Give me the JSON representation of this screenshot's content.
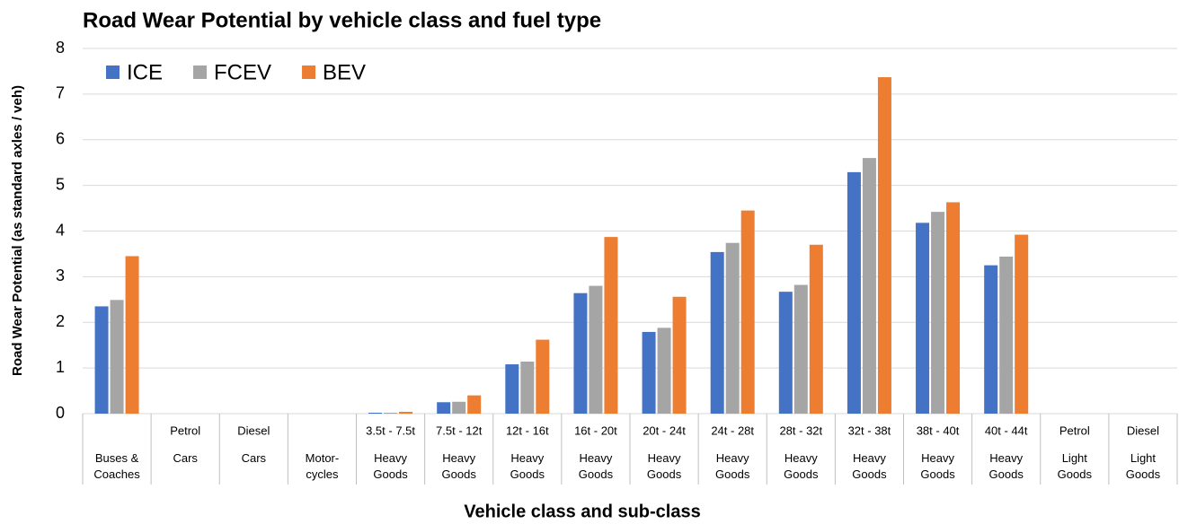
{
  "chart_data": {
    "type": "bar",
    "title": "Road Wear Potential by vehicle class and fuel type",
    "x_label": "Vehicle class and sub-class",
    "y_label": "Road Wear Potential (as standard axles / veh)",
    "categories": [
      null,
      "Petrol",
      "Diesel",
      null,
      "3.5t - 7.5t",
      "7.5t - 12t",
      "12t - 16t",
      "16t - 20t",
      "20t - 24t",
      "24t - 28t",
      "28t - 32t",
      "32t - 38t",
      "38t - 40t",
      "40t - 44t",
      "Petrol",
      "Diesel"
    ],
    "groups": [
      "Buses & Coaches",
      "Cars",
      "Cars",
      "Motor-cycles",
      "Heavy Goods",
      "Heavy Goods",
      "Heavy Goods",
      "Heavy Goods",
      "Heavy Goods",
      "Heavy Goods",
      "Heavy Goods",
      "Heavy Goods",
      "Heavy Goods",
      "Heavy Goods",
      "Light Goods",
      "Light Goods"
    ],
    "series": [
      {
        "name": "ICE",
        "color": "#4472c4",
        "values": [
          2.35,
          0,
          0,
          0,
          0.02,
          0.25,
          1.08,
          2.64,
          1.79,
          3.54,
          2.67,
          5.29,
          4.18,
          3.25,
          0,
          0
        ]
      },
      {
        "name": "FCEV",
        "color": "#a5a5a5",
        "values": [
          2.49,
          0,
          0,
          0,
          0.02,
          0.26,
          1.14,
          2.8,
          1.88,
          3.74,
          2.82,
          5.6,
          4.42,
          3.44,
          0,
          0
        ]
      },
      {
        "name": "BEV",
        "color": "#ed7d31",
        "values": [
          3.45,
          0,
          0,
          0,
          0.04,
          0.4,
          1.62,
          3.87,
          2.56,
          4.45,
          3.7,
          7.37,
          4.63,
          3.92,
          0,
          0
        ]
      }
    ],
    "ylim": [
      0,
      8
    ],
    "yticks": [
      0,
      1,
      2,
      3,
      4,
      5,
      6,
      7,
      8
    ],
    "grid": true,
    "legend": "top-left"
  }
}
